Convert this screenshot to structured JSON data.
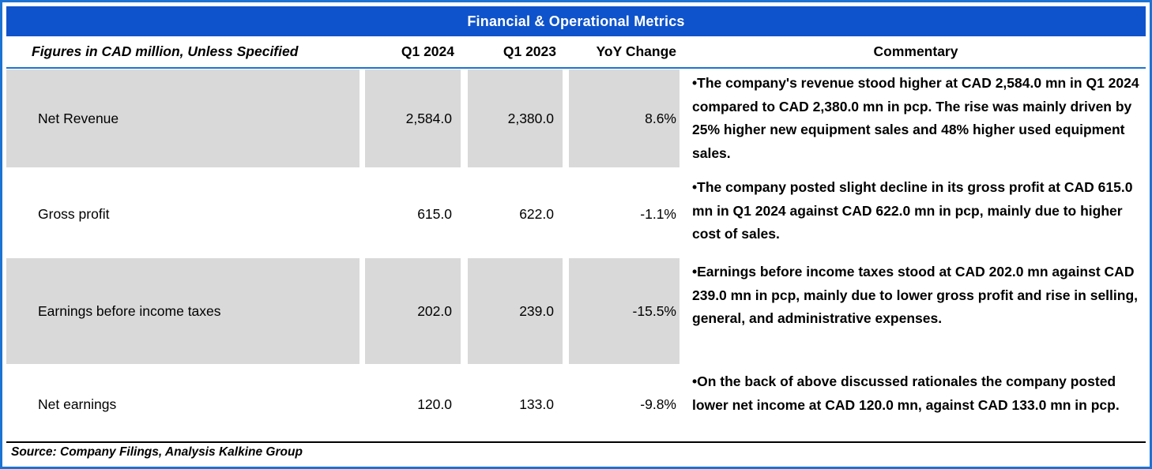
{
  "title": "Financial & Operational Metrics",
  "header": {
    "label": "Figures in CAD million, Unless Specified",
    "col_q1_2024": "Q1 2024",
    "col_q1_2023": "Q1 2023",
    "col_yoy": "YoY Change",
    "col_commentary": "Commentary"
  },
  "table": {
    "rows": [
      {
        "label": "Net Revenue",
        "q1_2024": "2,584.0",
        "q1_2023": "2,380.0",
        "yoy_change": "8.6%",
        "commentary": "•The company's revenue stood higher at CAD 2,584.0 mn in Q1 2024 compared to CAD 2,380.0 mn in pcp. The rise was mainly driven by 25% higher new equipment sales and 48% higher used equipment sales."
      },
      {
        "label": "Gross profit",
        "q1_2024": "615.0",
        "q1_2023": "622.0",
        "yoy_change": "-1.1%",
        "commentary": "•The company posted slight decline in its gross profit at CAD 615.0 mn in Q1 2024 against CAD 622.0 mn in pcp, mainly due to higher cost of sales."
      },
      {
        "label": "Earnings before income taxes",
        "q1_2024": "202.0",
        "q1_2023": "239.0",
        "yoy_change": "-15.5%",
        "commentary": "•Earnings before income taxes stood at CAD 202.0 mn against CAD 239.0 mn in pcp, mainly due to lower gross profit and rise in selling, general, and administrative expenses."
      },
      {
        "label": "Net earnings",
        "q1_2024": "120.0",
        "q1_2023": "133.0",
        "yoy_change": "-9.8%",
        "commentary": "•On the back of above discussed rationales the company posted lower net income at CAD 120.0 mn, against CAD 133.0 mn in pcp."
      }
    ]
  },
  "footer": {
    "source": "Source: Company Filings, Analysis Kalkine Group"
  },
  "chart_data": {
    "type": "table",
    "title": "Financial & Operational Metrics",
    "columns": [
      "Figures in CAD million, Unless Specified",
      "Q1 2024",
      "Q1 2023",
      "YoY Change"
    ],
    "rows": [
      [
        "Net Revenue",
        2584.0,
        2380.0,
        "8.6%"
      ],
      [
        "Gross profit",
        615.0,
        622.0,
        "-1.1%"
      ],
      [
        "Earnings before income taxes",
        202.0,
        239.0,
        "-15.5%"
      ],
      [
        "Net earnings",
        120.0,
        133.0,
        "-9.8%"
      ]
    ]
  },
  "colors": {
    "title_bar": "#0e53cb",
    "outer_border": "#1d73d3",
    "row_shade": "#d9d9d9",
    "text": "#000000"
  }
}
